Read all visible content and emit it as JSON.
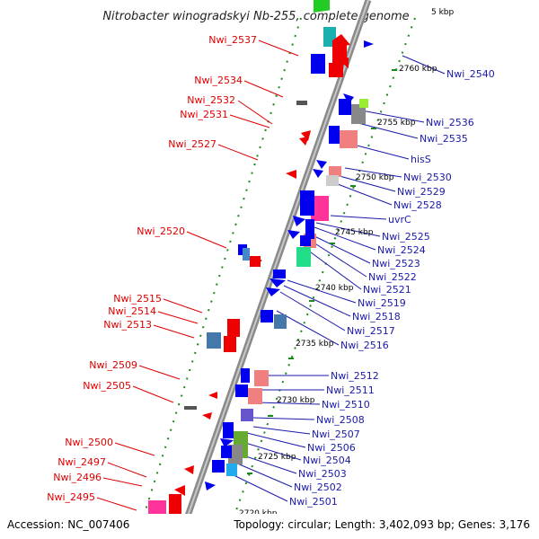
{
  "title": "Nitrobacter winogradskyi Nb-255, complete genome",
  "accession_text": "Accession: NC_007406",
  "topology_text": "Topology: circular; Length: 3,402,093 bp; Genes: 3,176",
  "ticks": [
    "2720 kbp",
    "2725 kbp",
    "2730 kbp",
    "2735 kbp",
    "2740 kbp",
    "2745 kbp",
    "2750 kbp",
    "2755 kbp",
    "2760 kbp",
    "5 kbp"
  ],
  "left_genes": [
    "Nwi_2537",
    "Nwi_2534",
    "Nwi_2532",
    "Nwi_2531",
    "Nwi_2527",
    "Nwi_2520",
    "Nwi_2515",
    "Nwi_2514",
    "Nwi_2513",
    "Nwi_2509",
    "Nwi_2505",
    "Nwi_2500",
    "Nwi_2497",
    "Nwi_2496",
    "Nwi_2495"
  ],
  "right_genes": [
    "Nwi_2540",
    "Nwi_2536",
    "Nwi_2535",
    "hisS",
    "Nwi_2530",
    "Nwi_2529",
    "Nwi_2528",
    "uvrC",
    "Nwi_2525",
    "Nwi_2524",
    "Nwi_2523",
    "Nwi_2522",
    "Nwi_2521",
    "Nwi_2519",
    "Nwi_2518",
    "Nwi_2517",
    "Nwi_2516",
    "Nwi_2512",
    "Nwi_2511",
    "Nwi_2510",
    "Nwi_2508",
    "Nwi_2507",
    "Nwi_2506",
    "Nwi_2504",
    "Nwi_2503",
    "Nwi_2502",
    "Nwi_2501"
  ],
  "colors": {
    "left_label": "#dd0000",
    "right_label": "#1a1aaa",
    "backbone": "#888888",
    "tick": "#1a8a1a"
  }
}
